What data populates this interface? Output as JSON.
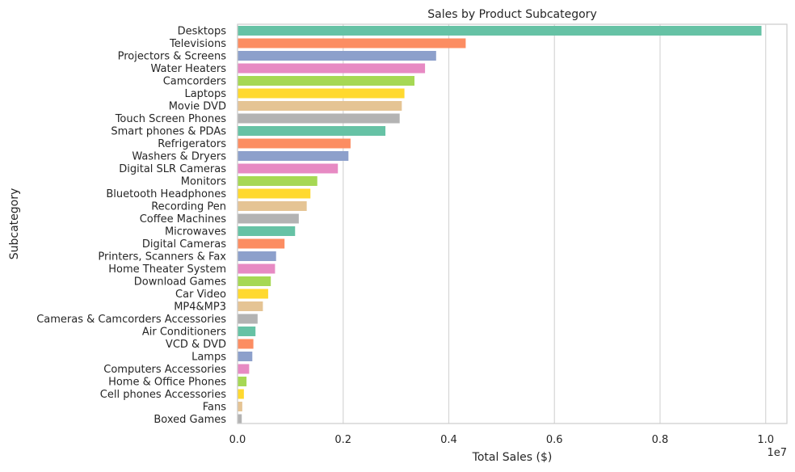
{
  "chart_data": {
    "type": "bar",
    "orientation": "horizontal",
    "title": "Sales by Product Subcategory",
    "xlabel": "Total Sales ($)",
    "ylabel": "Subcategory",
    "x_offset_label": "1e7",
    "xlim": [
      0,
      10400000
    ],
    "x_ticks": [
      0,
      2000000,
      4000000,
      6000000,
      8000000,
      10000000
    ],
    "x_tick_labels": [
      "0.0",
      "0.2",
      "0.4",
      "0.6",
      "0.8",
      "1.0"
    ],
    "grid": true,
    "categories": [
      "Desktops",
      "Televisions",
      "Projectors & Screens",
      "Water Heaters",
      "Camcorders",
      "Laptops",
      "Movie DVD",
      "Touch Screen Phones",
      "Smart phones & PDAs",
      "Refrigerators",
      "Washers & Dryers",
      "Digital SLR Cameras",
      "Monitors",
      "Bluetooth Headphones",
      "Recording Pen",
      "Coffee Machines",
      "Microwaves",
      "Digital Cameras",
      "Printers, Scanners & Fax",
      "Home Theater System",
      "Download Games",
      "Car Video",
      "MP4&MP3",
      "Cameras & Camcorders Accessories",
      "Air Conditioners",
      "VCD & DVD",
      "Lamps",
      "Computers Accessories",
      "Home & Office Phones",
      "Cell phones Accessories",
      "Fans",
      "Boxed Games"
    ],
    "values": [
      9920000,
      4320000,
      3760000,
      3550000,
      3350000,
      3160000,
      3110000,
      3070000,
      2800000,
      2140000,
      2100000,
      1900000,
      1510000,
      1380000,
      1310000,
      1160000,
      1090000,
      890000,
      730000,
      710000,
      630000,
      580000,
      480000,
      380000,
      340000,
      300000,
      280000,
      220000,
      170000,
      120000,
      90000,
      80000
    ],
    "palette": [
      "#66c2a5",
      "#fc8d62",
      "#8da0cb",
      "#e78ac3",
      "#a6d854",
      "#ffd92f",
      "#e5c494",
      "#b3b3b3"
    ]
  }
}
